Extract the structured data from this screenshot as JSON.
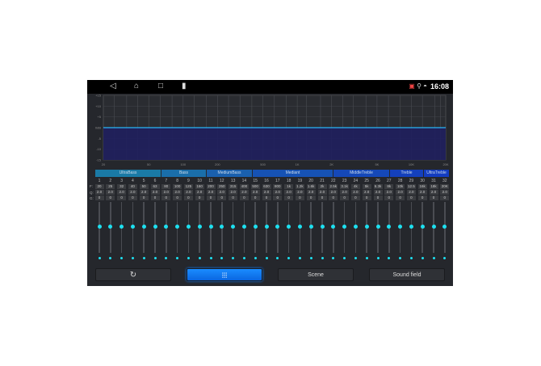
{
  "status_bar": {
    "time": "16:08",
    "nav_icons": [
      "back-icon",
      "home-icon",
      "recents-icon",
      "battery-icon"
    ],
    "status_icons": [
      "no-signal-icon",
      "location-icon",
      "gamepad-icon"
    ]
  },
  "graph": {
    "y_labels": [
      "+15",
      "+10",
      "+5",
      "0dB",
      "-5",
      "-10",
      "-15"
    ],
    "x_labels": [
      "20",
      "50",
      "100",
      "200",
      "500",
      "1K",
      "2K",
      "5K",
      "10K",
      "20K"
    ],
    "line_color": "#29b6f6",
    "fill_color": "#1f1f5e"
  },
  "groups": [
    {
      "label": "UltraBass",
      "color": "#1a7aa6"
    },
    {
      "label": "Bass",
      "color": "#1a6eaa"
    },
    {
      "label": "MediumBass",
      "color": "#1a60ae"
    },
    {
      "label": "Mediant",
      "color": "#1652b4"
    },
    {
      "label": "MiddleTreble",
      "color": "#1548b8"
    },
    {
      "label": "Treble",
      "color": "#1440bc"
    },
    {
      "label": "UltraTreble",
      "color": "#133cc0"
    }
  ],
  "row_labels": {
    "f": "F:",
    "q": "Q:",
    "g": "G:"
  },
  "bands": {
    "numbers": [
      "1",
      "2",
      "3",
      "4",
      "5",
      "6",
      "7",
      "8",
      "9",
      "10",
      "11",
      "12",
      "13",
      "14",
      "15",
      "16",
      "17",
      "18",
      "19",
      "20",
      "21",
      "22",
      "23",
      "24",
      "25",
      "26",
      "27",
      "28",
      "29",
      "30",
      "31",
      "32"
    ],
    "freq": [
      "20",
      "25",
      "32",
      "40",
      "50",
      "63",
      "80",
      "100",
      "125",
      "160",
      "200",
      "250",
      "315",
      "400",
      "500",
      "630",
      "800",
      "1k",
      "1.2k",
      "1.6k",
      "2k",
      "2.5k",
      "3.1k",
      "4k",
      "5k",
      "6.3k",
      "8k",
      "10k",
      "12.5",
      "16k",
      "18k",
      "20K"
    ],
    "q": [
      "2.0",
      "2.0",
      "2.0",
      "2.0",
      "2.0",
      "2.0",
      "2.0",
      "2.0",
      "2.0",
      "2.0",
      "2.0",
      "2.0",
      "2.0",
      "2.0",
      "2.0",
      "2.0",
      "2.0",
      "2.0",
      "2.0",
      "2.0",
      "2.0",
      "2.0",
      "2.0",
      "2.0",
      "2.0",
      "2.0",
      "2.0",
      "2.0",
      "2.0",
      "2.0",
      "2.0",
      "2.0"
    ],
    "gain": [
      "0",
      "0",
      "0",
      "0",
      "0",
      "0",
      "0",
      "0",
      "0",
      "0",
      "0",
      "0",
      "0",
      "0",
      "0",
      "0",
      "0",
      "0",
      "0",
      "0",
      "0",
      "0",
      "0",
      "0",
      "0",
      "0",
      "0",
      "0",
      "0",
      "0",
      "0",
      "0"
    ],
    "slider_level_db": 0
  },
  "buttons": {
    "reset_icon": "reset-icon",
    "eq_icon": "equalizer-sliders-icon",
    "scene": "Scene",
    "sound_field": "Sound field",
    "accent": "#1a8cff"
  }
}
